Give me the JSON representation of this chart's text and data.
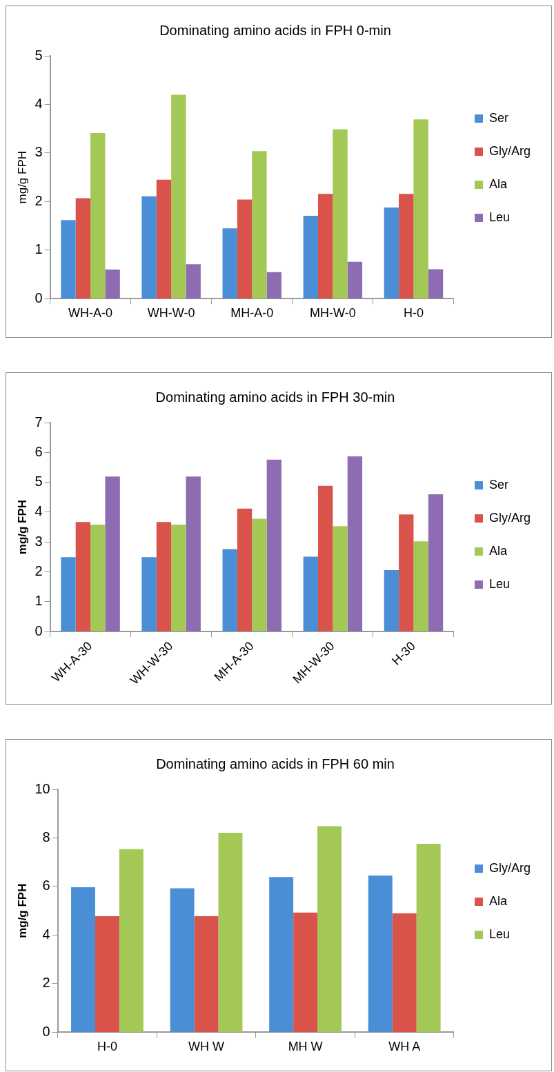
{
  "chart_data": [
    {
      "type": "bar",
      "title": "Dominating amino acids in FPH 0-min",
      "ylabel": "mg/g FPH",
      "categories": [
        "WH-A-0",
        "WH-W-0",
        "MH-A-0",
        "MH-W-0",
        "H-0"
      ],
      "ylim": [
        0,
        5
      ],
      "yticks": [
        0,
        1,
        2,
        3,
        4,
        5
      ],
      "legend": "right",
      "series": [
        {
          "name": "Ser",
          "color": "#4a8fd6",
          "values": [
            1.62,
            2.11,
            1.45,
            1.71,
            1.88
          ]
        },
        {
          "name": "Gly/Arg",
          "color": "#d9534a",
          "values": [
            2.07,
            2.45,
            2.04,
            2.16,
            2.16
          ]
        },
        {
          "name": "Ala",
          "color": "#a4c856",
          "values": [
            3.41,
            4.2,
            3.04,
            3.49,
            3.69
          ]
        },
        {
          "name": "Leu",
          "color": "#8d6cb2",
          "values": [
            0.6,
            0.71,
            0.55,
            0.76,
            0.61
          ]
        }
      ]
    },
    {
      "type": "bar",
      "title": "Dominating amino acids in FPH 30-min",
      "ylabel": "mg/g FPH",
      "categories": [
        "WH-A-30",
        "WH-W-30",
        "MH-A-30",
        "MH-W-30",
        "H-30"
      ],
      "ylim": [
        0,
        7
      ],
      "yticks": [
        0,
        1,
        2,
        3,
        4,
        5,
        6,
        7
      ],
      "legend": "right",
      "series": [
        {
          "name": "Ser",
          "color": "#4a8fd6",
          "values": [
            2.49,
            2.49,
            2.76,
            2.51,
            2.06
          ]
        },
        {
          "name": "Gly/Arg",
          "color": "#d9534a",
          "values": [
            3.67,
            3.67,
            4.12,
            4.88,
            3.92
          ]
        },
        {
          "name": "Ala",
          "color": "#a4c856",
          "values": [
            3.58,
            3.58,
            3.78,
            3.53,
            3.02
          ]
        },
        {
          "name": "Leu",
          "color": "#8d6cb2",
          "values": [
            5.19,
            5.19,
            5.76,
            5.87,
            4.6
          ]
        }
      ]
    },
    {
      "type": "bar",
      "title": "Dominating amino acids in FPH 60 min",
      "ylabel": "mg/g FPH",
      "categories": [
        "H-0",
        "WH W",
        "MH W",
        "WH A"
      ],
      "ylim": [
        0,
        10
      ],
      "yticks": [
        0,
        2,
        4,
        6,
        8,
        10
      ],
      "legend": "right",
      "series": [
        {
          "name": "Gly/Arg",
          "color": "#4a8fd6",
          "values": [
            5.97,
            5.93,
            6.39,
            6.45
          ]
        },
        {
          "name": "Ala",
          "color": "#d9534a",
          "values": [
            4.78,
            4.78,
            4.93,
            4.9
          ]
        },
        {
          "name": "Leu",
          "color": "#a4c856",
          "values": [
            7.54,
            8.21,
            8.48,
            7.76
          ]
        }
      ]
    }
  ]
}
